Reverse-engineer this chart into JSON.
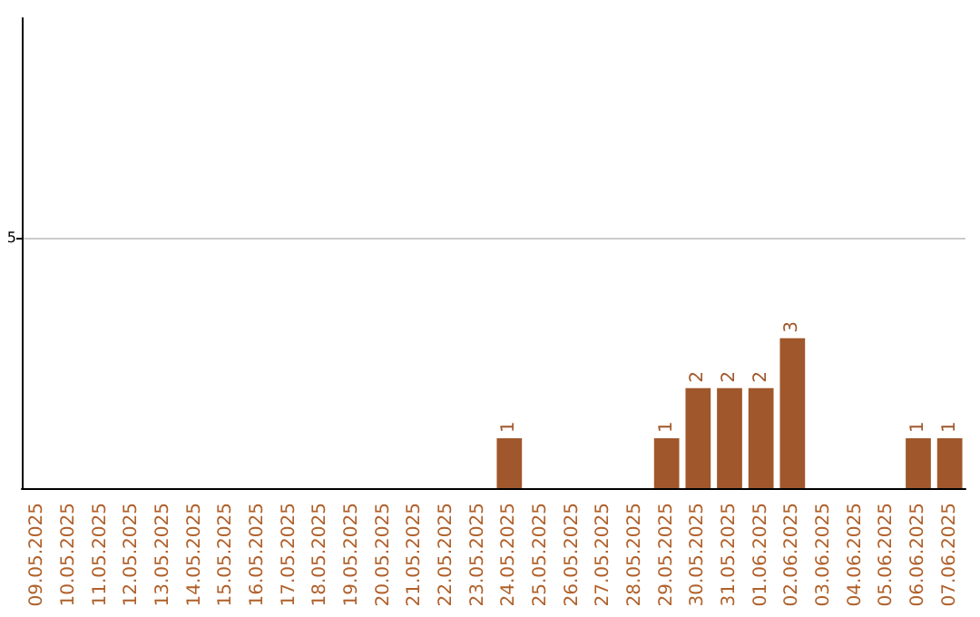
{
  "chart_data": {
    "type": "bar",
    "categories": [
      "09.05.2025",
      "10.05.2025",
      "11.05.2025",
      "12.05.2025",
      "13.05.2025",
      "14.05.2025",
      "15.05.2025",
      "16.05.2025",
      "17.05.2025",
      "18.05.2025",
      "19.05.2025",
      "20.05.2025",
      "21.05.2025",
      "22.05.2025",
      "23.05.2025",
      "24.05.2025",
      "25.05.2025",
      "26.05.2025",
      "27.05.2025",
      "28.05.2025",
      "29.05.2025",
      "30.05.2025",
      "31.05.2025",
      "01.06.2025",
      "02.06.2025",
      "03.06.2025",
      "04.06.2025",
      "05.06.2025",
      "06.06.2025",
      "07.06.2025"
    ],
    "values": [
      null,
      null,
      null,
      null,
      null,
      null,
      null,
      null,
      null,
      null,
      null,
      null,
      null,
      null,
      null,
      1,
      null,
      null,
      null,
      null,
      1,
      2,
      2,
      2,
      3,
      null,
      null,
      null,
      1,
      1
    ],
    "value_labels": [
      null,
      null,
      null,
      null,
      null,
      null,
      null,
      null,
      null,
      null,
      null,
      null,
      null,
      null,
      null,
      "1",
      null,
      null,
      null,
      null,
      "1",
      "2",
      "2",
      "2",
      "3",
      null,
      null,
      null,
      "1",
      "1"
    ],
    "color": "#a0572b",
    "ylim": [
      0,
      9.4
    ],
    "yticks": [
      5
    ],
    "grid": "y"
  }
}
